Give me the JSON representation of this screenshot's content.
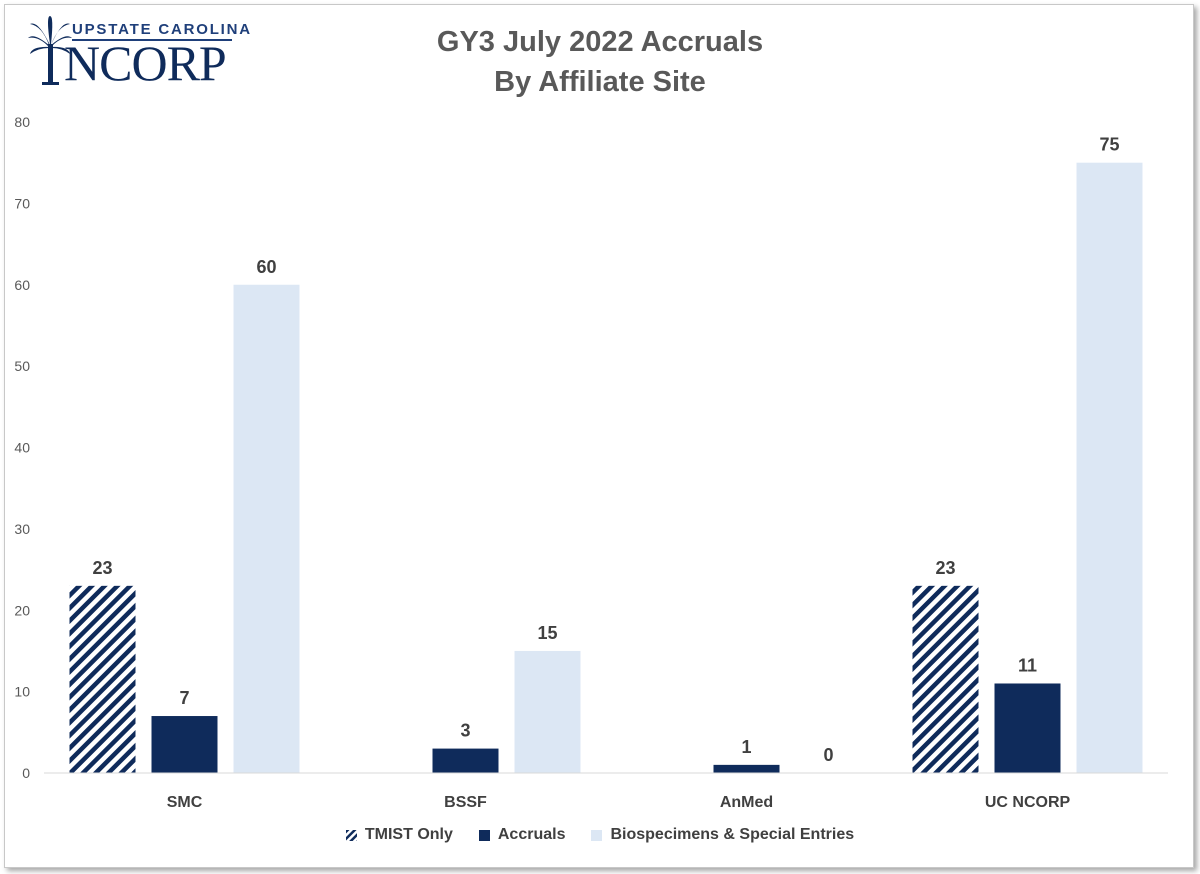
{
  "logo": {
    "top_text": "UPSTATE CAROLINA",
    "main_text": "NCORP",
    "icon": "palmetto-tree-icon",
    "color": "#0f2b5b"
  },
  "chart_data": {
    "type": "bar",
    "title": "GY3 July 2022 Accruals",
    "subtitle": "By Affiliate Site",
    "categories": [
      "SMC",
      "BSSF",
      "AnMed",
      "UC NCORP"
    ],
    "series": [
      {
        "name": "TMIST Only",
        "values": [
          23,
          null,
          null,
          23
        ],
        "labels": [
          "23",
          "",
          "",
          "23"
        ],
        "color": "#0f2b5b",
        "pattern": "diagonal-stripes"
      },
      {
        "name": "Accruals",
        "values": [
          7,
          3,
          1,
          11
        ],
        "labels": [
          "7",
          "3",
          "1",
          "11"
        ],
        "color": "#0f2b5b",
        "pattern": "solid"
      },
      {
        "name": "Biospecimens & Special Entries",
        "values": [
          60,
          15,
          0,
          75
        ],
        "labels": [
          "60",
          "15",
          "0",
          "75"
        ],
        "color": "#dce7f4",
        "pattern": "solid"
      }
    ],
    "ylim": [
      0,
      80
    ],
    "yticks": [
      "0",
      "10",
      "20",
      "30",
      "40",
      "50",
      "60",
      "70",
      "80"
    ],
    "grid": false,
    "legend_position": "bottom"
  }
}
